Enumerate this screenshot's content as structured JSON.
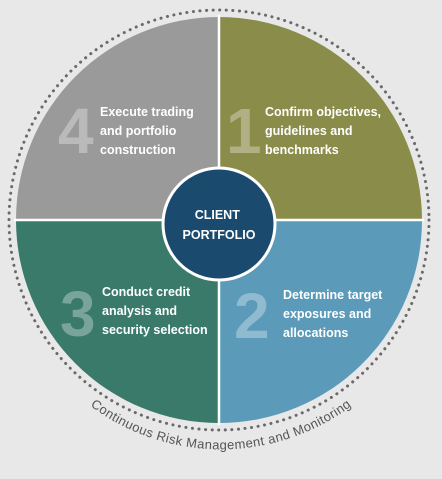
{
  "center": {
    "line1": "CLIENT",
    "line2": "PORTFOLIO",
    "color": "#1a4a6e"
  },
  "ring_label": "Continuous Risk Management and Monitoring",
  "steps": [
    {
      "number": "1",
      "lines": [
        "Confirm objectives,",
        "guidelines and",
        "benchmarks"
      ],
      "color": "#8a8c4a"
    },
    {
      "number": "2",
      "lines": [
        "Determine target",
        "exposures and",
        "allocations"
      ],
      "color": "#5b9ab8"
    },
    {
      "number": "3",
      "lines": [
        "Conduct credit",
        "analysis and",
        "security selection"
      ],
      "color": "#3a7a6a"
    },
    {
      "number": "4",
      "lines": [
        "Execute trading",
        "and portfolio",
        "construction"
      ],
      "color": "#9a9a9a"
    }
  ],
  "colors": {
    "background": "#e8e8e8",
    "dotted_ring": "#6a6a6a",
    "divider": "#ffffff"
  }
}
